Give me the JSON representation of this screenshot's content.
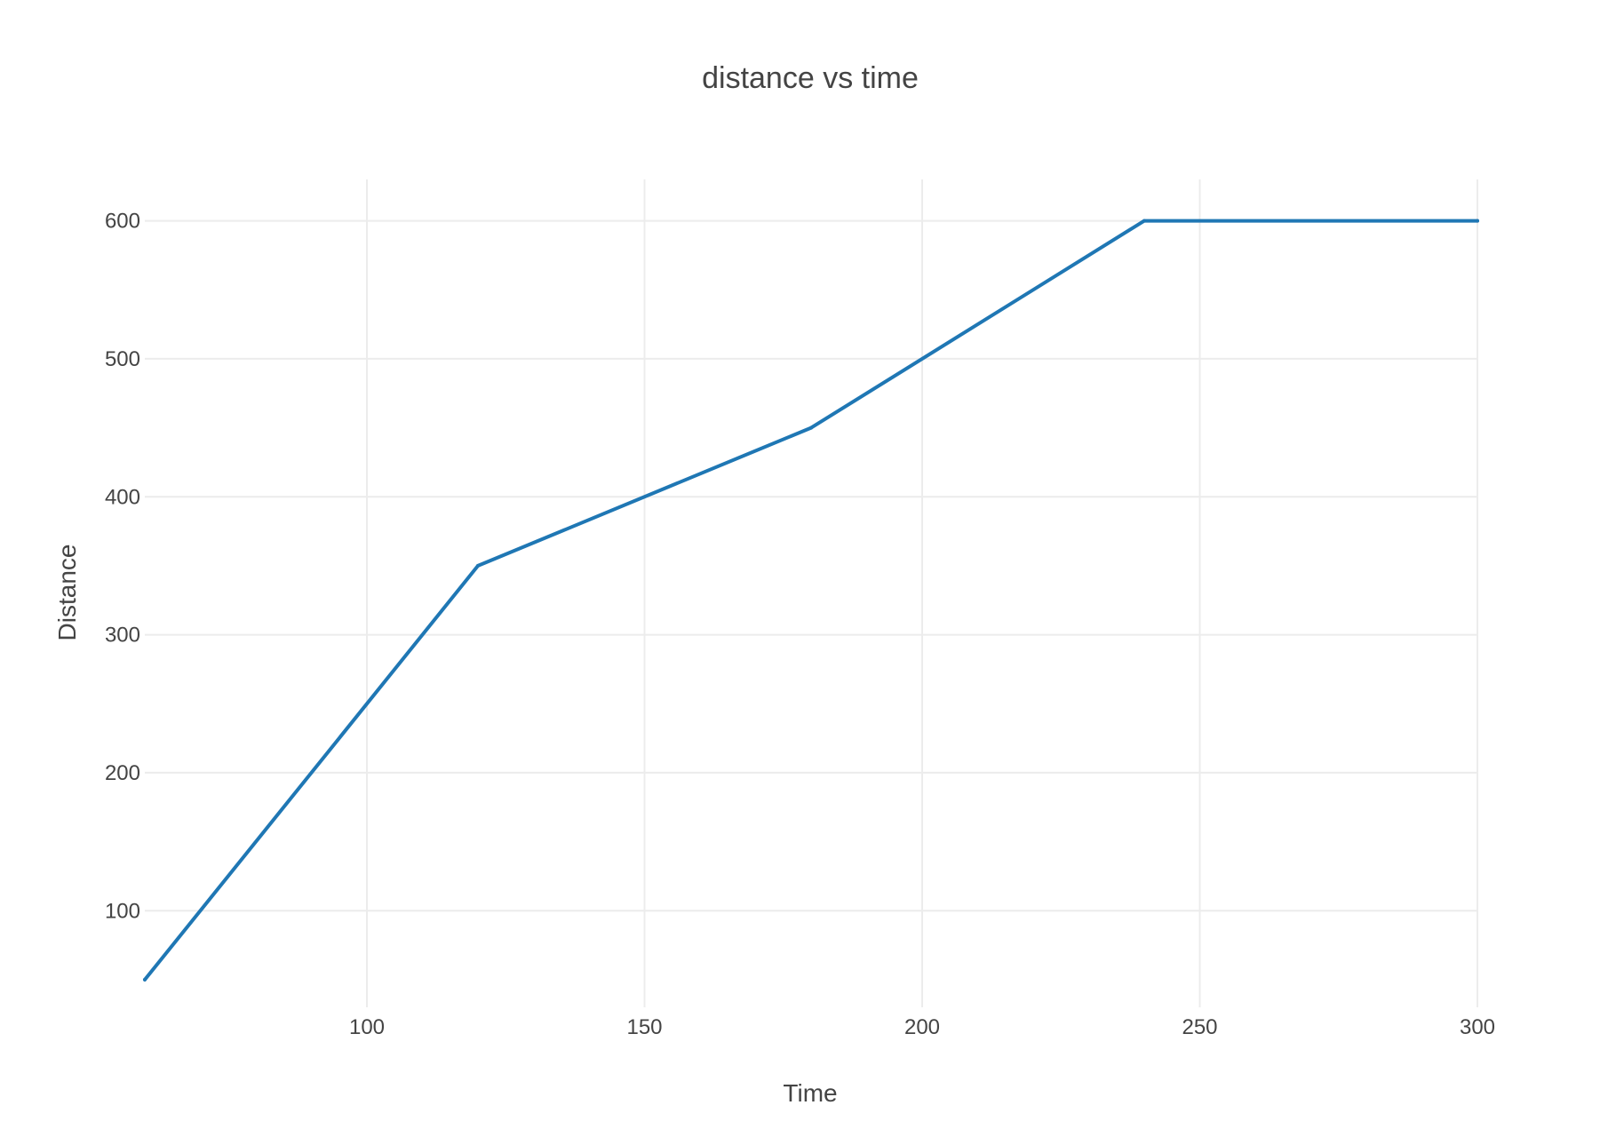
{
  "chart_data": {
    "type": "line",
    "title": "distance vs time",
    "xlabel": "Time",
    "ylabel": "Distance",
    "xlim": [
      60,
      300
    ],
    "ylim": [
      30,
      630
    ],
    "xticks": [
      100,
      150,
      200,
      250,
      300
    ],
    "yticks": [
      100,
      200,
      300,
      400,
      500,
      600
    ],
    "grid": true,
    "series": [
      {
        "x": [
          60,
          120,
          180,
          240,
          300
        ],
        "y": [
          50,
          350,
          450,
          600,
          600
        ],
        "color": "#1f77b4"
      }
    ]
  }
}
